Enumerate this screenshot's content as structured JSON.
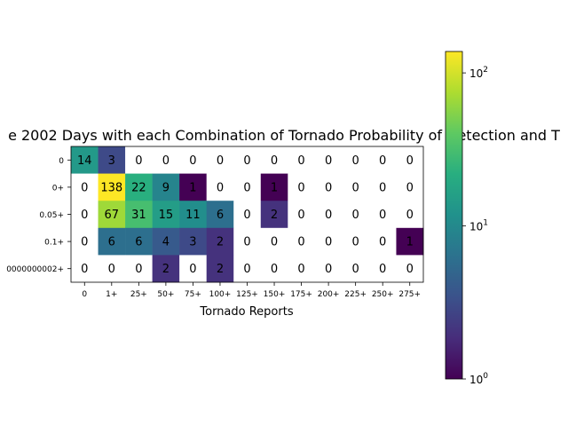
{
  "chart_data": {
    "type": "heatmap",
    "title": "e 2002 Days with each Combination of Tornado Probability of Detection and T",
    "xlabel": "Tornado Reports",
    "ylabel": "",
    "x_categories": [
      "0",
      "1+",
      "25+",
      "50+",
      "75+",
      "100+",
      "125+",
      "150+",
      "175+",
      "200+",
      "225+",
      "250+",
      "275+"
    ],
    "y_categories": [
      "0",
      "0+",
      "0.05+",
      "0.1+",
      "0000000002+"
    ],
    "values": [
      [
        14,
        3,
        0,
        0,
        0,
        0,
        0,
        0,
        0,
        0,
        0,
        0,
        0
      ],
      [
        0,
        138,
        22,
        9,
        1,
        0,
        0,
        1,
        0,
        0,
        0,
        0,
        0
      ],
      [
        0,
        67,
        31,
        15,
        11,
        6,
        0,
        2,
        0,
        0,
        0,
        0,
        0
      ],
      [
        0,
        6,
        6,
        4,
        3,
        2,
        0,
        0,
        0,
        0,
        0,
        0,
        1
      ],
      [
        0,
        0,
        0,
        2,
        0,
        2,
        0,
        0,
        0,
        0,
        0,
        0,
        0
      ]
    ],
    "color_scale": "log",
    "colormap": "viridis",
    "zero_color": "#ffffff",
    "colorbar": {
      "range": [
        1,
        138
      ],
      "ticks": [
        {
          "value": 1,
          "base": "10",
          "exp": "0"
        },
        {
          "value": 10,
          "base": "10",
          "exp": "1"
        },
        {
          "value": 100,
          "base": "10",
          "exp": "2"
        }
      ]
    }
  }
}
